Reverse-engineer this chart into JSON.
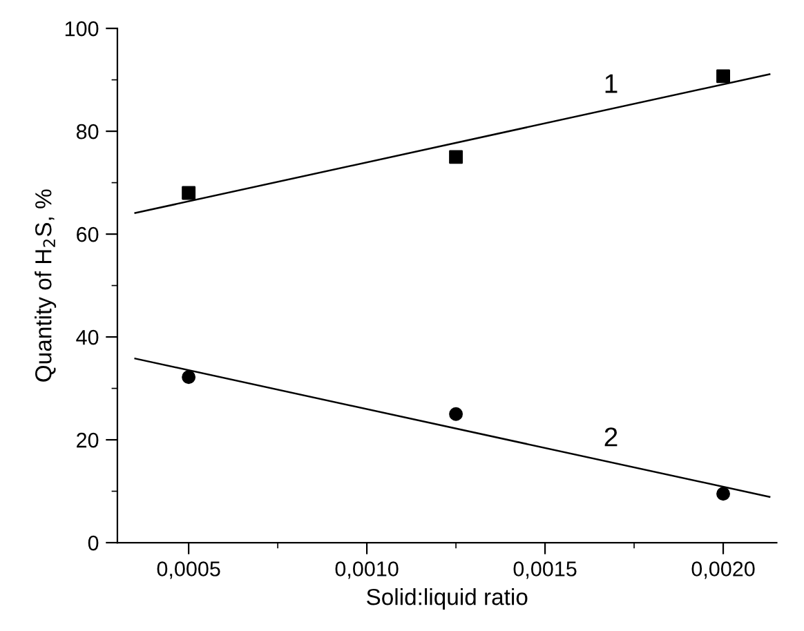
{
  "chart_data": {
    "type": "scatter",
    "xlabel": "Solid:liquid ratio",
    "ylabel": "Quantity of H$_{2}$S, %",
    "series": [
      {
        "marker": "square",
        "color": "#000000",
        "x": [
          0.0005,
          0.00125,
          0.002
        ],
        "values": [
          68,
          75,
          90.7
        ]
      },
      {
        "marker": "circle",
        "color": "#000000",
        "x": [
          0.0005,
          0.00125,
          0.002
        ],
        "values": [
          32.2,
          25,
          9.5
        ]
      },
      {
        "type": "line",
        "name": "1",
        "marker": "none",
        "color": "#000000",
        "x": [
          0.00035,
          0.00213
        ],
        "values": [
          64.1,
          91.1
        ]
      },
      {
        "type": "line",
        "name": "2",
        "marker": "none",
        "color": "#000000",
        "x": [
          0.00035,
          0.00213
        ],
        "values": [
          35.8,
          8.9
        ]
      }
    ],
    "xlim": [
      0.0003,
      0.00215
    ],
    "xticks": [
      {
        "value": 0.0005,
        "label": "0,0005"
      },
      {
        "value": 0.001,
        "label": "0,0010"
      },
      {
        "value": 0.0015,
        "label": "0,0015"
      },
      {
        "value": 0.002,
        "label": "0,0020"
      }
    ],
    "ylim": [
      0,
      100
    ],
    "yticks": [
      0,
      20,
      40,
      60,
      80,
      100
    ],
    "grid": false,
    "legend": false
  }
}
